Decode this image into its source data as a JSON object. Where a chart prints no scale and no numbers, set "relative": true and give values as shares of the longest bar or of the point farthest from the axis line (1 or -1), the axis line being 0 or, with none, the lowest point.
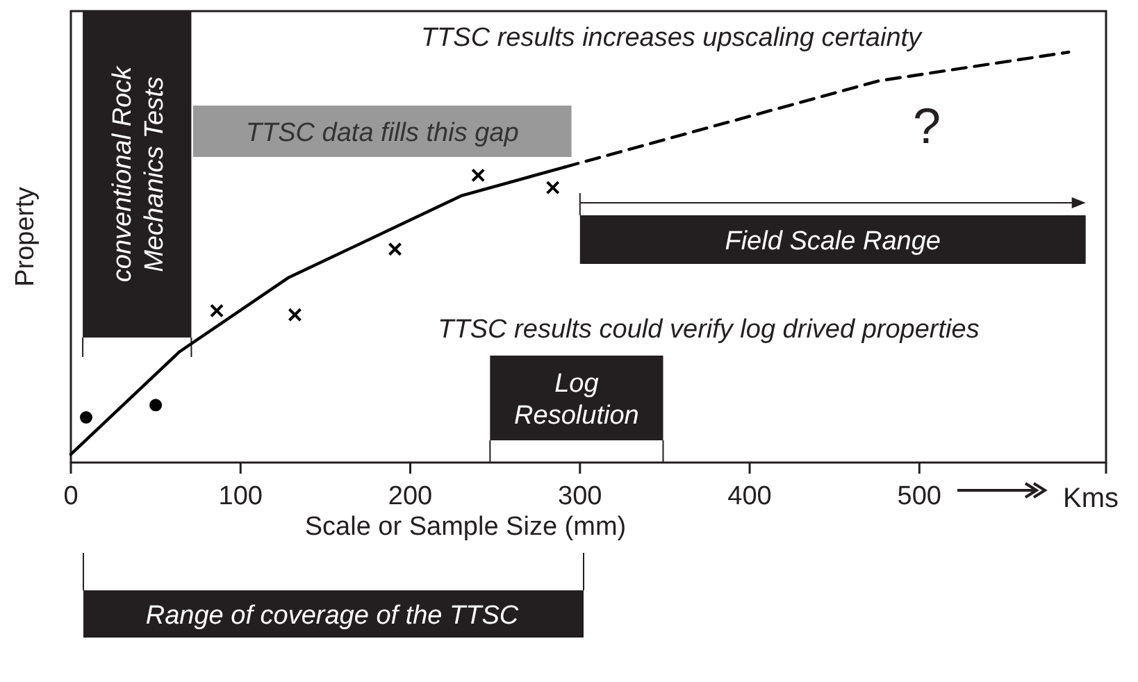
{
  "chart_data": {
    "type": "line",
    "relative": true,
    "xlabel": "Scale or Sample Size (mm)",
    "ylabel": "Property",
    "xlim": [
      0,
      610
    ],
    "xticks": [
      0,
      100,
      200,
      300,
      400,
      500,
      {
        "value": 610,
        "label": null
      }
    ],
    "grid": false,
    "series": [
      {
        "color": "#000000",
        "line_style": "solid",
        "marker": "none",
        "x": [
          0,
          64,
          128,
          230,
          291
        ],
        "values": [
          0.02,
          0.27,
          0.45,
          0.65,
          0.72
        ]
      },
      {
        "color": "#000000",
        "line_style": "dashed",
        "marker": "none",
        "x": [
          291,
          476,
          588
        ],
        "values": [
          0.72,
          0.93,
          1.0
        ]
      },
      {
        "type": "scatter",
        "color": "#000000",
        "marker": "cross",
        "x": [
          86,
          132,
          191,
          240,
          284
        ],
        "values": [
          0.37,
          0.36,
          0.52,
          0.7,
          0.67
        ]
      },
      {
        "type": "scatter",
        "color": "#000000",
        "marker": "circle",
        "x": [
          9,
          50
        ],
        "values": [
          0.11,
          0.14
        ]
      }
    ],
    "bands": [
      {
        "axis": "x",
        "from": 7,
        "to": 71,
        "label": "conventional Rock Mechanics Tests",
        "color": "#231f20"
      },
      {
        "axis": "x",
        "from": 72,
        "to": 295,
        "label": "TTSC data fills this gap",
        "color": "#999999"
      },
      {
        "axis": "x",
        "from": 300,
        "to": 598,
        "label": "Field Scale Range",
        "color": "#231f20"
      },
      {
        "axis": "x",
        "from": 247,
        "to": 349,
        "label": "Log Resolution",
        "color": "#231f20"
      }
    ],
    "annotations": [
      "TTSC results increases upscaling certainty",
      "TTSC results could verify log drived properties",
      "?",
      "Kms",
      "Range of coverage of the TTSC"
    ]
  }
}
